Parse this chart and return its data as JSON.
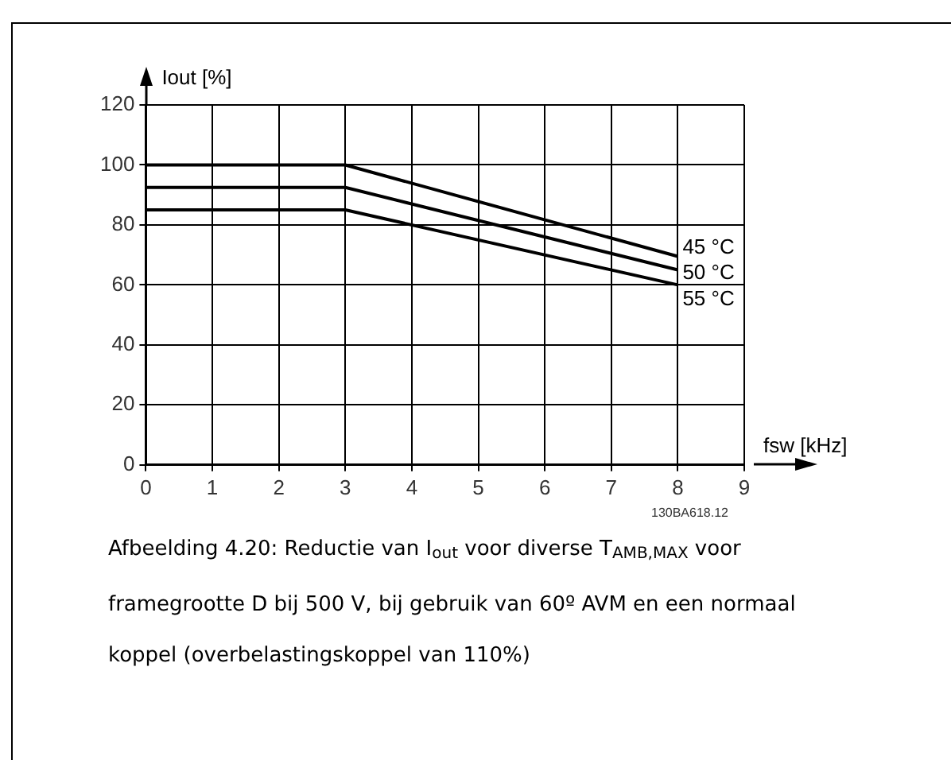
{
  "chart_data": {
    "type": "line",
    "xlabel": "fsw [kHz]",
    "ylabel": "Iout [%]",
    "x": [
      0,
      3,
      8
    ],
    "series": [
      {
        "name": "45 °C",
        "color": "#000000",
        "values": [
          100,
          100,
          69.5
        ]
      },
      {
        "name": "50 °C",
        "color": "#000000",
        "values": [
          92.5,
          92.5,
          65
        ]
      },
      {
        "name": "55 °C",
        "color": "#000000",
        "values": [
          85,
          85,
          60
        ]
      }
    ],
    "xlim": [
      0,
      9
    ],
    "xticks": [
      0,
      1,
      2,
      3,
      4,
      5,
      6,
      7,
      8,
      9
    ],
    "ylim": [
      0,
      120
    ],
    "yticks": [
      0,
      20,
      40,
      60,
      80,
      100,
      120
    ],
    "grid": true,
    "legend": false,
    "marker": "none",
    "line_style": "solid",
    "annotations": [
      "130BA618.12",
      "Afbeelding 4.20: Reductie van I$_{out}$ voor diverse T$_{AMB,MAX}$ voor framegrootte D bij 500 V, bij gebruik van 60º AVM en een normaal koppel (overbelastingskoppel van 110%)"
    ]
  }
}
